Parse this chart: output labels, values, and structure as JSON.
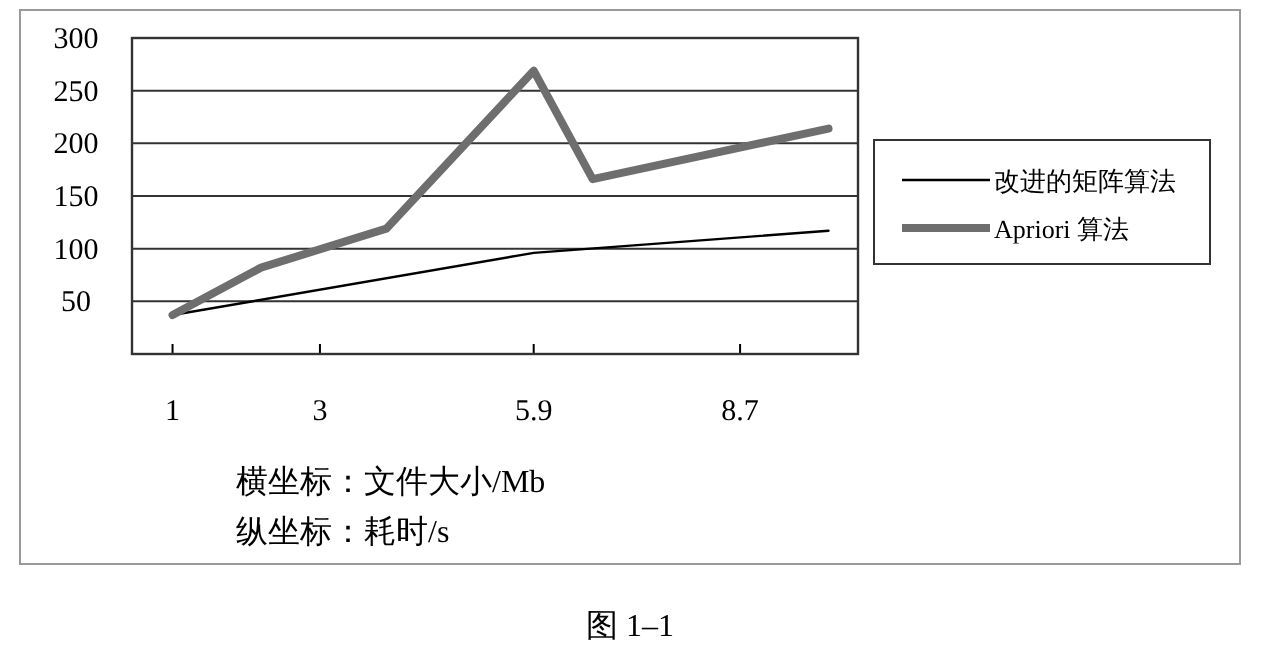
{
  "chart_data": {
    "type": "line",
    "series": [
      {
        "name": "改进的矩阵算法",
        "color": "#000000",
        "x": [
          1,
          5.9,
          9.9
        ],
        "values": [
          37,
          96,
          117
        ]
      },
      {
        "name": "Apriori 算法",
        "color": "#6e6e6e",
        "x": [
          1,
          2.2,
          3.9,
          5.9,
          6.7,
          9.9
        ],
        "values": [
          37,
          82,
          119,
          269,
          166,
          214
        ]
      }
    ],
    "xlim": [
      0.45,
      10.3
    ],
    "xticks": [
      1,
      3,
      5.9,
      8.7
    ],
    "ylim": [
      0,
      300
    ],
    "yticks": [
      50,
      100,
      150,
      200,
      250,
      300
    ],
    "grid": "y",
    "legend": "right",
    "marker": "none",
    "line_style": "solid",
    "annotations": [
      "横坐标：文件大小/Mb",
      "纵坐标：耗时/s",
      "图 1–1"
    ]
  }
}
